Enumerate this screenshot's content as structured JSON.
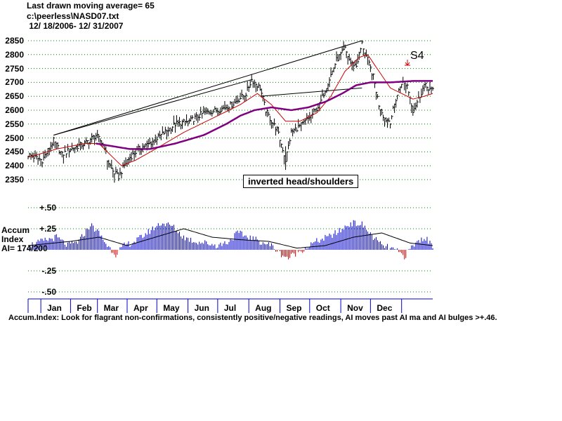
{
  "header": {
    "line1": "Last drawn moving average= 65",
    "line2": "c:\\peerless\\NASD07.txt",
    "line3": " 12/ 18/2006- 12/ 31/2007"
  },
  "annotations": {
    "signal": "S4",
    "pattern": "inverted head/shoulders"
  },
  "accum_labels": {
    "line1": "Accum",
    "line2": "Index",
    "line3": "AI= 174/200"
  },
  "footer": "Accum.Index: Look for flagrant non-confirmations, consistently positive/negative readings, AI moves past AI ma and AI bulges >+.46.",
  "colors": {
    "price_bar": "#000000",
    "ma_short": "#cc0000",
    "ma_long": "#800080",
    "grid": "#008000",
    "ai_positive": "#0000cc",
    "ai_negative": "#cc0000",
    "ai_ma": "#000000",
    "signal_arrow": "#cc0000"
  },
  "chart_data": [
    {
      "type": "line",
      "title": "",
      "ylim": [
        2350,
        2850
      ],
      "yticks": [
        "2850",
        "2800",
        "2750",
        "2700",
        "2650",
        "2600",
        "2550",
        "2500",
        "2450",
        "2400",
        "2350"
      ],
      "grid": true,
      "months": [
        "Jan",
        "Feb",
        "Mar",
        "Apr",
        "May",
        "Jun",
        "Jul",
        "Aug",
        "Sep",
        "Oct",
        "Nov",
        "Dec"
      ],
      "price_keypoints": [
        [
          0,
          2440
        ],
        [
          10,
          2420
        ],
        [
          18,
          2490
        ],
        [
          24,
          2440
        ],
        [
          30,
          2460
        ],
        [
          40,
          2480
        ],
        [
          48,
          2510
        ],
        [
          54,
          2470
        ],
        [
          56,
          2420
        ],
        [
          60,
          2380
        ],
        [
          64,
          2360
        ],
        [
          70,
          2420
        ],
        [
          78,
          2460
        ],
        [
          86,
          2480
        ],
        [
          94,
          2510
        ],
        [
          104,
          2550
        ],
        [
          114,
          2560
        ],
        [
          124,
          2590
        ],
        [
          134,
          2600
        ],
        [
          144,
          2620
        ],
        [
          154,
          2660
        ],
        [
          158,
          2710
        ],
        [
          164,
          2680
        ],
        [
          168,
          2600
        ],
        [
          172,
          2560
        ],
        [
          176,
          2530
        ],
        [
          180,
          2460
        ],
        [
          182,
          2420
        ],
        [
          186,
          2520
        ],
        [
          194,
          2550
        ],
        [
          200,
          2580
        ],
        [
          206,
          2620
        ],
        [
          212,
          2700
        ],
        [
          218,
          2780
        ],
        [
          224,
          2820
        ],
        [
          228,
          2770
        ],
        [
          232,
          2760
        ],
        [
          236,
          2840
        ],
        [
          240,
          2780
        ],
        [
          244,
          2720
        ],
        [
          248,
          2620
        ],
        [
          252,
          2570
        ],
        [
          256,
          2560
        ],
        [
          260,
          2640
        ],
        [
          264,
          2700
        ],
        [
          268,
          2690
        ],
        [
          272,
          2600
        ],
        [
          276,
          2640
        ],
        [
          280,
          2690
        ],
        [
          286,
          2670
        ]
      ],
      "ma_short_keypoints": [
        [
          0,
          2430
        ],
        [
          20,
          2460
        ],
        [
          40,
          2480
        ],
        [
          50,
          2480
        ],
        [
          58,
          2440
        ],
        [
          66,
          2400
        ],
        [
          76,
          2420
        ],
        [
          90,
          2460
        ],
        [
          110,
          2520
        ],
        [
          130,
          2570
        ],
        [
          150,
          2620
        ],
        [
          162,
          2660
        ],
        [
          172,
          2620
        ],
        [
          182,
          2560
        ],
        [
          192,
          2560
        ],
        [
          204,
          2590
        ],
        [
          214,
          2650
        ],
        [
          224,
          2740
        ],
        [
          234,
          2790
        ],
        [
          240,
          2800
        ],
        [
          248,
          2740
        ],
        [
          256,
          2680
        ],
        [
          264,
          2660
        ],
        [
          272,
          2640
        ],
        [
          280,
          2650
        ],
        [
          286,
          2660
        ]
      ],
      "ma_long_keypoints": [
        [
          48,
          2480
        ],
        [
          60,
          2470
        ],
        [
          72,
          2460
        ],
        [
          86,
          2460
        ],
        [
          104,
          2480
        ],
        [
          124,
          2510
        ],
        [
          140,
          2550
        ],
        [
          150,
          2580
        ],
        [
          160,
          2600
        ],
        [
          172,
          2610
        ],
        [
          186,
          2600
        ],
        [
          198,
          2610
        ],
        [
          210,
          2630
        ],
        [
          222,
          2660
        ],
        [
          232,
          2690
        ],
        [
          242,
          2700
        ],
        [
          256,
          2700
        ],
        [
          272,
          2705
        ],
        [
          286,
          2705
        ]
      ],
      "trendlines": [
        [
          [
            18,
            2510
          ],
          [
            236,
            2850
          ]
        ],
        [
          [
            18,
            2510
          ],
          [
            158,
            2710
          ]
        ],
        [
          [
            164,
            2650
          ],
          [
            236,
            2680
          ]
        ]
      ]
    },
    {
      "type": "bar",
      "title": "",
      "ylim": [
        -0.5,
        0.5
      ],
      "yticks": [
        "+.50",
        "+.25",
        "",
        "-.25",
        "-.50"
      ],
      "ai_keypoints": [
        [
          0,
          0.05
        ],
        [
          10,
          0.1
        ],
        [
          20,
          0.15
        ],
        [
          28,
          0.05
        ],
        [
          36,
          0.1
        ],
        [
          44,
          0.3
        ],
        [
          50,
          0.2
        ],
        [
          56,
          0.05
        ],
        [
          62,
          -0.05
        ],
        [
          68,
          0.05
        ],
        [
          76,
          0.1
        ],
        [
          84,
          0.2
        ],
        [
          94,
          0.32
        ],
        [
          102,
          0.28
        ],
        [
          110,
          0.15
        ],
        [
          118,
          0.1
        ],
        [
          126,
          0.08
        ],
        [
          134,
          0.05
        ],
        [
          142,
          0.1
        ],
        [
          148,
          0.2
        ],
        [
          156,
          0.15
        ],
        [
          164,
          0.1
        ],
        [
          172,
          0.05
        ],
        [
          178,
          -0.04
        ],
        [
          184,
          -0.1
        ],
        [
          190,
          -0.03
        ],
        [
          196,
          0.02
        ],
        [
          204,
          0.1
        ],
        [
          212,
          0.15
        ],
        [
          220,
          0.22
        ],
        [
          228,
          0.32
        ],
        [
          236,
          0.3
        ],
        [
          244,
          0.15
        ],
        [
          250,
          0.05
        ],
        [
          256,
          0.02
        ],
        [
          262,
          -0.03
        ],
        [
          266,
          -0.08
        ],
        [
          272,
          0.05
        ],
        [
          280,
          0.15
        ],
        [
          286,
          0.05
        ]
      ],
      "ai_ma_keypoints": [
        [
          0,
          0.05
        ],
        [
          30,
          0.1
        ],
        [
          50,
          0.15
        ],
        [
          70,
          0.05
        ],
        [
          90,
          0.15
        ],
        [
          110,
          0.25
        ],
        [
          130,
          0.15
        ],
        [
          150,
          0.12
        ],
        [
          170,
          0.1
        ],
        [
          190,
          0.02
        ],
        [
          210,
          0.05
        ],
        [
          230,
          0.15
        ],
        [
          250,
          0.2
        ],
        [
          270,
          0.08
        ],
        [
          286,
          0.05
        ]
      ]
    }
  ]
}
